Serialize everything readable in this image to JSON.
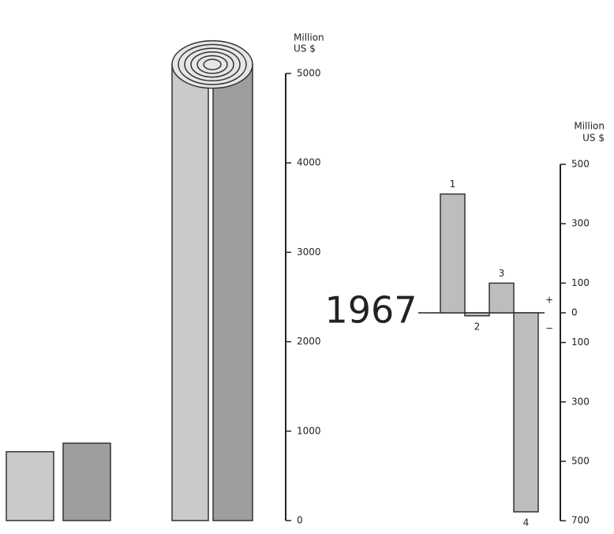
{
  "chart_data": [
    {
      "type": "cylinder-bar",
      "ylabel": [
        "Million",
        "US $"
      ],
      "categories": [
        null,
        null,
        null,
        null
      ],
      "values": [
        770,
        865,
        5100,
        5100
      ],
      "colors": [
        "#cacaca",
        "#9e9e9e",
        "#cacaca",
        "#9e9e9e"
      ],
      "ylim": [
        0,
        5000
      ],
      "yticks": [
        0,
        1000,
        2000,
        3000,
        4000,
        5000
      ]
    },
    {
      "type": "bar",
      "title": "1967",
      "ylabel": [
        "Million",
        "US $"
      ],
      "categories": [
        "1",
        "2",
        "3",
        "4"
      ],
      "values": [
        400,
        -10,
        100,
        -670
      ],
      "color": "#bdbdbd",
      "annotations": [
        "+",
        "−"
      ],
      "ylim": [
        -700,
        500
      ],
      "yticks": [
        500,
        300,
        100,
        0,
        {
          "value": -100,
          "label": "100"
        },
        {
          "value": -300,
          "label": "300"
        },
        {
          "value": -500,
          "label": "500"
        },
        {
          "value": -700,
          "label": "700"
        }
      ]
    }
  ]
}
